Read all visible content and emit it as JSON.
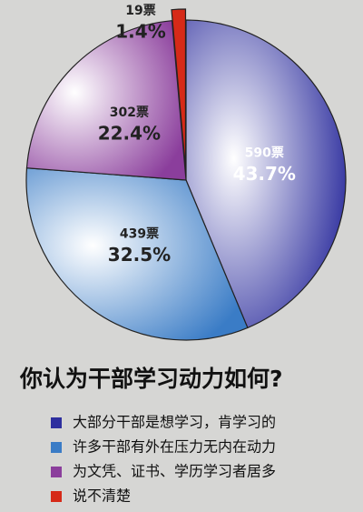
{
  "chart_data": {
    "type": "pie",
    "title": "你认为干部学习动力如何?",
    "categories": [
      "大部分干部是想学习，肯学习的",
      "许多干部有外在压力无内在动力",
      "为文凭、证书、学历学习者居多",
      "说不清楚"
    ],
    "values": [
      43.7,
      32.5,
      22.4,
      1.4
    ],
    "value_labels": [
      "43.7%",
      "32.5%",
      "22.4%",
      "1.4%"
    ],
    "counts": [
      590,
      439,
      302,
      19
    ],
    "count_labels": [
      "590票",
      "439票",
      "302票",
      "19票"
    ],
    "colors": [
      "#2e2f9e",
      "#3a7cc6",
      "#8b3e9c",
      "#d62a18"
    ],
    "legend": "bottom-left"
  }
}
